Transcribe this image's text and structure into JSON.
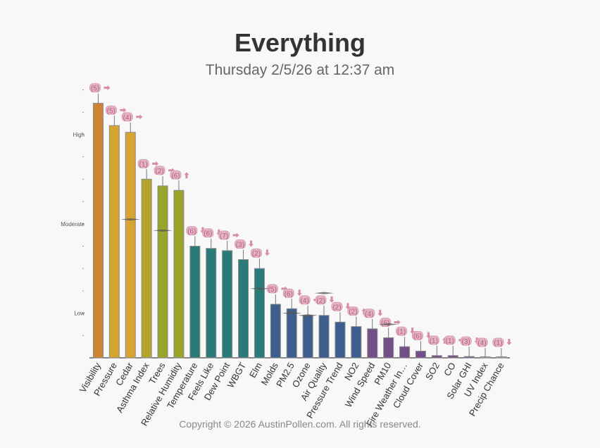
{
  "header": {
    "title": "Everything",
    "subtitle": "Thursday 2/5/26 at 12:37 am"
  },
  "footer": {
    "copyright": "Copyright © 2026 AustinPollen.com.  All rights reserved."
  },
  "chart_data": {
    "type": "bar",
    "title": "Everything",
    "subtitle": "Thursday 2/5/26 at 12:37 am",
    "xlabel": "",
    "ylabel": "",
    "ylim": [
      0,
      12
    ],
    "y_tick_labels": [
      {
        "value": 2,
        "label": "Low"
      },
      {
        "value": 6,
        "label": "Moderate"
      },
      {
        "value": 10,
        "label": "High"
      }
    ],
    "minor_ticks": [
      1,
      2,
      3,
      4,
      5,
      6,
      7,
      8,
      9,
      10,
      11,
      12
    ],
    "grid": false,
    "categories": [
      "Visibility",
      "Pressure",
      "Cedar",
      "Asthma Index",
      "Trees",
      "Relative Humidity",
      "Temperature",
      "Feels Like",
      "Dew Point",
      "WBGT",
      "Elm",
      "Molds",
      "PM2.5",
      "Ozone",
      "Air Quality",
      "Pressure Trend",
      "NO2",
      "Wind Speed",
      "PM10",
      "Fire Weather In…",
      "Cloud Cover",
      "SO2",
      "CO",
      "Solar GHI",
      "UV Index",
      "Precip Chance"
    ],
    "values": [
      11.4,
      10.4,
      10.1,
      8.0,
      7.7,
      7.5,
      5.0,
      4.9,
      4.8,
      4.4,
      4.0,
      2.4,
      2.2,
      1.9,
      1.9,
      1.6,
      1.4,
      1.3,
      0.9,
      0.5,
      0.3,
      0.1,
      0.1,
      0.06,
      0.0,
      0.0
    ],
    "colors": [
      "#cd8434",
      "#d6a431",
      "#d6a431",
      "#b3a42e",
      "#9aa42b",
      "#9aa42b",
      "#2a7b78",
      "#2a7b78",
      "#2a7b78",
      "#2a7b78",
      "#2a7b78",
      "#3e5f8d",
      "#3e5f8d",
      "#3e5f8d",
      "#3e5f8d",
      "#3e5f8d",
      "#3e5f8d",
      "#734f87",
      "#734f87",
      "#734f87",
      "#734f87",
      "#734f87",
      "#734f87",
      "#734f87",
      "#aaaaaa",
      "#aaaaaa"
    ],
    "badges": [
      "(5)",
      "(5)",
      "(4)",
      "(1)",
      "(2)",
      "(6)",
      "(6)",
      "(6)",
      "(7)",
      "(3)",
      "(2)",
      "(5)",
      "(6)",
      "(4)",
      "(2)",
      "(2)",
      "(2)",
      "(4)",
      "(6)",
      "(1)",
      "(6)",
      "(1)",
      "(1)",
      "(3)",
      "(4)",
      "(1)"
    ],
    "trends": [
      "right",
      "right",
      "right",
      "right",
      "right",
      "up",
      "down",
      "down",
      "right",
      "down",
      "down",
      "right",
      "down",
      "right",
      "down",
      "down",
      "up",
      "down",
      "right",
      "down",
      "down",
      "up",
      "right",
      "down",
      "none",
      "down"
    ],
    "markers": [
      {
        "category": "Cedar",
        "value": 6.2
      },
      {
        "category": "Trees",
        "value": 5.7
      },
      {
        "category": "Elm",
        "value": 3.1
      },
      {
        "category": "PM2.5",
        "value": 2.0
      },
      {
        "category": "Ozone",
        "value": 1.9
      },
      {
        "category": "Air Quality",
        "value": 2.9
      },
      {
        "category": "PM10",
        "value": 1.5
      }
    ]
  }
}
